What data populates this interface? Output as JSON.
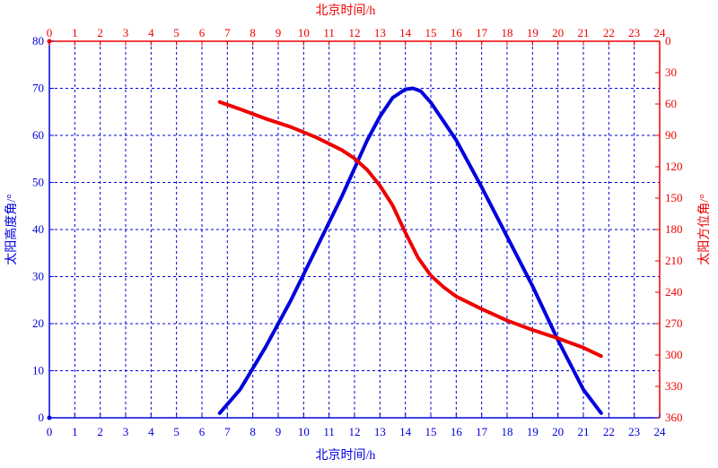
{
  "chart_data": {
    "type": "line",
    "x_bottom_label": "北京时间/h",
    "x_top_label": "北京时间/h",
    "ylabel_left": "太阳高度角/°",
    "ylabel_right": "太阳方位角/°",
    "xlim": [
      0,
      24
    ],
    "ylim_left": [
      0,
      80
    ],
    "ylim_right": [
      0,
      360
    ],
    "right_axis_inverted": true,
    "x_ticks": [
      "0",
      "1",
      "2",
      "3",
      "4",
      "5",
      "6",
      "7",
      "8",
      "9",
      "10",
      "11",
      "12",
      "13",
      "14",
      "15",
      "16",
      "17",
      "18",
      "19",
      "20",
      "21",
      "22",
      "23",
      "24"
    ],
    "y_left_ticks": [
      "0",
      "10",
      "20",
      "30",
      "40",
      "50",
      "60",
      "70",
      "80"
    ],
    "y_right_ticks": [
      "0",
      "30",
      "60",
      "90",
      "120",
      "150",
      "180",
      "210",
      "240",
      "270",
      "300",
      "330",
      "360"
    ],
    "grid": true,
    "colors": {
      "left_axis": "#0000dd",
      "right_axis": "#ee0000"
    },
    "series": [
      {
        "axis": "left",
        "color": "#0000dd",
        "x": [
          6.7,
          7.5,
          8.5,
          9.5,
          10.5,
          11.5,
          12.0,
          12.5,
          13.0,
          13.5,
          14.0,
          14.3,
          14.6,
          15.0,
          15.5,
          16.0,
          17.0,
          18.0,
          19.0,
          20.0,
          21.0,
          21.7
        ],
        "y": [
          1,
          6,
          15,
          25,
          36,
          47,
          53,
          59,
          64,
          68,
          69.8,
          70,
          69.4,
          67,
          63,
          59,
          49,
          38.5,
          28,
          16.5,
          6,
          1
        ]
      },
      {
        "axis": "right",
        "color": "#ee0000",
        "x": [
          6.7,
          7.5,
          8.5,
          9.5,
          10.5,
          11.5,
          12.0,
          12.5,
          13.0,
          13.5,
          14.0,
          14.5,
          15.0,
          15.5,
          16.0,
          17.0,
          18.0,
          19.0,
          20.0,
          21.0,
          21.7
        ],
        "y": [
          58,
          65,
          74,
          82,
          92,
          104,
          112,
          123,
          138,
          157,
          183,
          207,
          224,
          235,
          244,
          256,
          267,
          276,
          284,
          293,
          301
        ]
      }
    ]
  }
}
